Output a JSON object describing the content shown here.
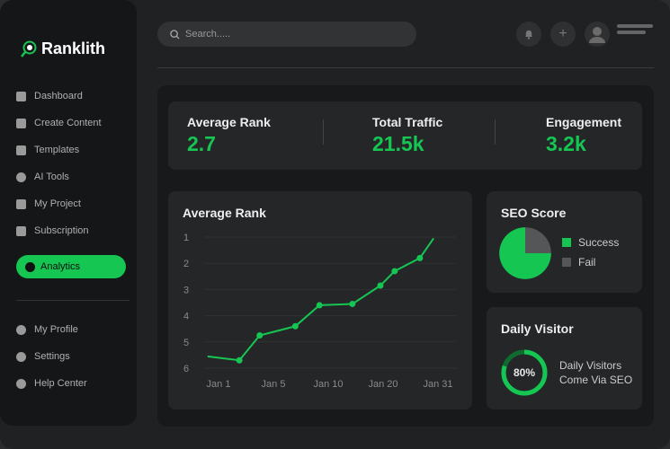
{
  "brand": {
    "name": "Ranklith",
    "accent": "#16c653"
  },
  "sidebar": {
    "items": [
      {
        "label": "Dashboard",
        "icon": "grid-icon"
      },
      {
        "label": "Create Content",
        "icon": "plus-square-icon"
      },
      {
        "label": "Templates",
        "icon": "layers-icon"
      },
      {
        "label": "AI Tools",
        "icon": "ai-icon"
      },
      {
        "label": "My Project",
        "icon": "edit-icon"
      },
      {
        "label": "Subscription",
        "icon": "card-icon"
      },
      {
        "label": "Analytics",
        "icon": "pie-chart-icon",
        "active": true
      }
    ],
    "bottom": [
      {
        "label": "My Profile",
        "icon": "user-icon"
      },
      {
        "label": "Settings",
        "icon": "gear-icon"
      },
      {
        "label": "Help Center",
        "icon": "help-icon"
      }
    ]
  },
  "header": {
    "search_placeholder": "Search....."
  },
  "stats": [
    {
      "label": "Average Rank",
      "value": "2.7"
    },
    {
      "label": "Total Traffic",
      "value": "21.5k"
    },
    {
      "label": "Engagement",
      "value": "3.2k"
    }
  ],
  "chart_data": [
    {
      "type": "line",
      "title": "Average Rank",
      "categories": [
        "Jan 1",
        "Jan 5",
        "Jan 10",
        "Jan 20",
        "Jan 31"
      ],
      "yticks": [
        "1",
        "2",
        "3",
        "4",
        "5",
        "6"
      ],
      "ylim": [
        1,
        6
      ],
      "y_inverted": true,
      "grid": true,
      "points": [
        [
          -0.2,
          5.55
        ],
        [
          0.38,
          5.7
        ],
        [
          0.75,
          4.75
        ],
        [
          1.4,
          4.4
        ],
        [
          1.84,
          3.6
        ],
        [
          2.44,
          3.55
        ],
        [
          2.95,
          2.85
        ],
        [
          3.21,
          2.3
        ],
        [
          3.67,
          1.8
        ],
        [
          3.92,
          1.05
        ]
      ],
      "color": "#16c653"
    },
    {
      "type": "pie",
      "title": "SEO Score",
      "slices": [
        {
          "name": "Success",
          "value": 75,
          "color": "#16c653"
        },
        {
          "name": "Fail",
          "value": 25,
          "color": "#555658"
        }
      ]
    }
  ],
  "daily": {
    "title": "Daily Visitor",
    "percent_label": "80%",
    "percent": 80,
    "line1": "Daily Visitors",
    "line2": "Come Via SEO"
  }
}
